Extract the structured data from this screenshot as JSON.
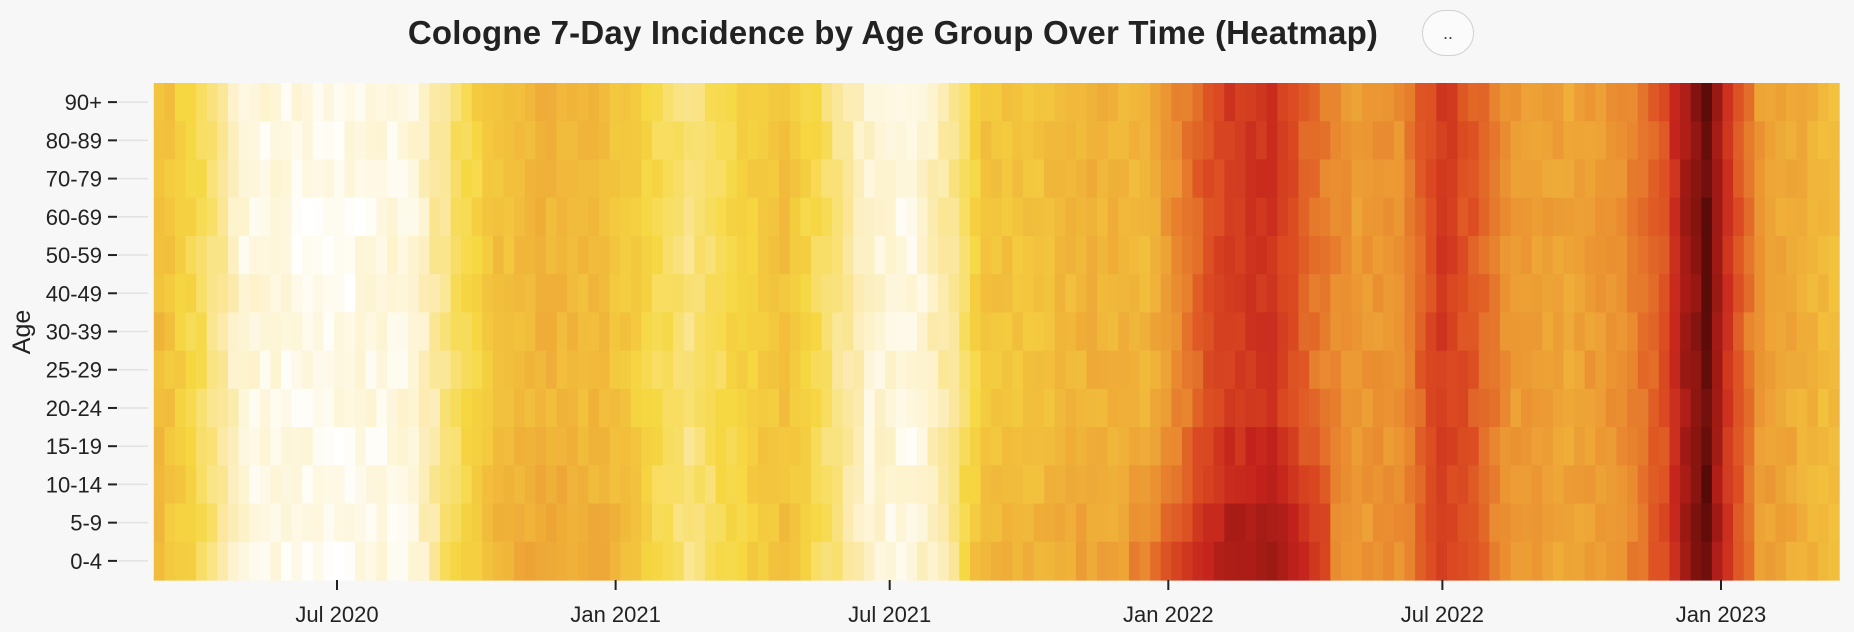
{
  "title": "Cologne 7-Day Incidence by Age Group Over Time (Heatmap)",
  "menu_button_label": "..",
  "chart_data": {
    "type": "heatmap",
    "title": "Cologne 7-Day Incidence by Age Group Over Time (Heatmap)",
    "ylabel": "Age",
    "xlabel": "",
    "x_start": "2020-03-02",
    "x_end": "2023-03-20",
    "x_step": "week",
    "x_ticks": [
      {
        "date": "2020-07-01",
        "label": "Jul 2020"
      },
      {
        "date": "2021-01-01",
        "label": "Jan 2021"
      },
      {
        "date": "2021-07-01",
        "label": "Jul 2021"
      },
      {
        "date": "2022-01-01",
        "label": "Jan 2022"
      },
      {
        "date": "2022-07-01",
        "label": "Jul 2022"
      },
      {
        "date": "2023-01-01",
        "label": "Jan 2023"
      }
    ],
    "age_groups": [
      "90+",
      "80-89",
      "70-79",
      "60-69",
      "50-59",
      "40-49",
      "30-39",
      "25-29",
      "20-24",
      "15-19",
      "10-14",
      "5-9",
      "0-4"
    ],
    "colorscale": [
      "#ffffff",
      "#fbe9a6",
      "#f6d842",
      "#f0b43a",
      "#e98a30",
      "#dc4d22",
      "#c4231c",
      "#8a1510",
      "#3d0605"
    ],
    "intensity_profile": [
      {
        "date": "2020-03-02",
        "level": 0.35
      },
      {
        "date": "2020-03-30",
        "level": 0.22
      },
      {
        "date": "2020-04-27",
        "level": 0.05
      },
      {
        "date": "2020-06-22",
        "level": 0.02
      },
      {
        "date": "2020-08-17",
        "level": 0.05
      },
      {
        "date": "2020-09-14",
        "level": 0.2
      },
      {
        "date": "2020-10-12",
        "level": 0.33
      },
      {
        "date": "2020-11-09",
        "level": 0.37
      },
      {
        "date": "2020-12-21",
        "level": 0.35
      },
      {
        "date": "2021-01-18",
        "level": 0.26
      },
      {
        "date": "2021-02-15",
        "level": 0.17
      },
      {
        "date": "2021-03-15",
        "level": 0.25
      },
      {
        "date": "2021-04-19",
        "level": 0.33
      },
      {
        "date": "2021-05-17",
        "level": 0.2
      },
      {
        "date": "2021-06-14",
        "level": 0.06
      },
      {
        "date": "2021-07-12",
        "level": 0.04
      },
      {
        "date": "2021-08-09",
        "level": 0.15
      },
      {
        "date": "2021-08-30",
        "level": 0.32
      },
      {
        "date": "2021-10-04",
        "level": 0.33
      },
      {
        "date": "2021-11-08",
        "level": 0.38
      },
      {
        "date": "2021-12-13",
        "level": 0.36
      },
      {
        "date": "2021-12-27",
        "level": 0.45
      },
      {
        "date": "2022-01-17",
        "level": 0.58
      },
      {
        "date": "2022-02-07",
        "level": 0.68
      },
      {
        "date": "2022-03-07",
        "level": 0.7
      },
      {
        "date": "2022-04-04",
        "level": 0.55
      },
      {
        "date": "2022-05-02",
        "level": 0.45
      },
      {
        "date": "2022-05-30",
        "level": 0.48
      },
      {
        "date": "2022-06-27",
        "level": 0.68
      },
      {
        "date": "2022-07-18",
        "level": 0.6
      },
      {
        "date": "2022-08-15",
        "level": 0.45
      },
      {
        "date": "2022-09-19",
        "level": 0.42
      },
      {
        "date": "2022-10-24",
        "level": 0.48
      },
      {
        "date": "2022-11-21",
        "level": 0.62
      },
      {
        "date": "2022-12-05",
        "level": 0.82
      },
      {
        "date": "2022-12-19",
        "level": 0.93
      },
      {
        "date": "2023-01-02",
        "level": 0.7
      },
      {
        "date": "2023-01-23",
        "level": 0.45
      },
      {
        "date": "2023-03-20",
        "level": 0.33
      }
    ]
  }
}
